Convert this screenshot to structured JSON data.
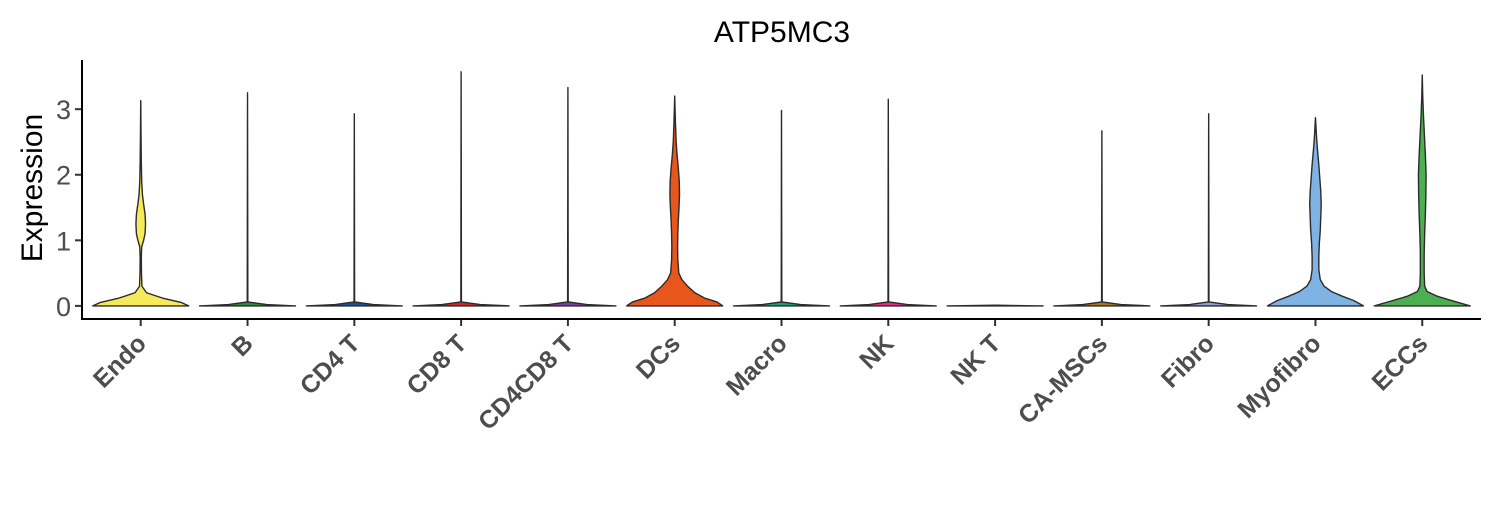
{
  "chart_data": {
    "type": "violin",
    "title": "ATP5MC3",
    "xlabel": "",
    "ylabel": "Expression",
    "ylim": [
      -0.2,
      3.75
    ],
    "yticks": [
      0,
      1,
      2,
      3
    ],
    "grid": false,
    "legend": "none",
    "categories": [
      "Endo",
      "B",
      "CD4 T",
      "CD8 T",
      "CD4CD8 T",
      "DCs",
      "Macro",
      "NK",
      "NK T",
      "CA-MSCs",
      "Fibro",
      "Myofibro",
      "ECCs"
    ],
    "colors": [
      "#F5EB5A",
      "#2E8B3E",
      "#1F4E99",
      "#D8232A",
      "#7A3FA0",
      "#E8561B",
      "#1B9E77",
      "#E7298A",
      "#66A61E",
      "#A6761D",
      "#8DA0CB",
      "#7EB3E3",
      "#4CAF50"
    ],
    "series": [
      {
        "max": 3.13,
        "profile": [
          [
            0,
            1.0
          ],
          [
            0.05,
            0.85
          ],
          [
            0.12,
            0.45
          ],
          [
            0.2,
            0.12
          ],
          [
            0.3,
            0.025
          ],
          [
            0.5,
            0.015
          ],
          [
            0.75,
            0.012
          ],
          [
            0.9,
            0.02
          ],
          [
            1.0,
            0.06
          ],
          [
            1.1,
            0.09
          ],
          [
            1.25,
            0.1
          ],
          [
            1.4,
            0.09
          ],
          [
            1.55,
            0.06
          ],
          [
            1.7,
            0.035
          ],
          [
            1.9,
            0.02
          ],
          [
            2.2,
            0.012
          ],
          [
            2.6,
            0.006
          ],
          [
            3.13,
            0.0
          ]
        ]
      },
      {
        "max": 3.25,
        "profile": [
          [
            0,
            1.0
          ],
          [
            0.02,
            0.4
          ],
          [
            0.06,
            0.006
          ],
          [
            3.25,
            0.0
          ]
        ]
      },
      {
        "max": 2.93,
        "profile": [
          [
            0,
            1.0
          ],
          [
            0.02,
            0.4
          ],
          [
            0.06,
            0.006
          ],
          [
            2.93,
            0.0
          ]
        ]
      },
      {
        "max": 3.57,
        "profile": [
          [
            0,
            1.0
          ],
          [
            0.02,
            0.4
          ],
          [
            0.06,
            0.006
          ],
          [
            3.57,
            0.0
          ]
        ]
      },
      {
        "max": 3.33,
        "profile": [
          [
            0,
            1.0
          ],
          [
            0.02,
            0.4
          ],
          [
            0.06,
            0.006
          ],
          [
            3.33,
            0.0
          ]
        ]
      },
      {
        "max": 3.2,
        "profile": [
          [
            0,
            1.0
          ],
          [
            0.06,
            0.88
          ],
          [
            0.12,
            0.62
          ],
          [
            0.2,
            0.42
          ],
          [
            0.3,
            0.27
          ],
          [
            0.4,
            0.15
          ],
          [
            0.5,
            0.085
          ],
          [
            0.7,
            0.065
          ],
          [
            0.9,
            0.06
          ],
          [
            1.1,
            0.065
          ],
          [
            1.3,
            0.075
          ],
          [
            1.5,
            0.09
          ],
          [
            1.7,
            0.1
          ],
          [
            1.9,
            0.095
          ],
          [
            2.1,
            0.075
          ],
          [
            2.3,
            0.05
          ],
          [
            2.5,
            0.03
          ],
          [
            2.8,
            0.015
          ],
          [
            3.2,
            0.0
          ]
        ]
      },
      {
        "max": 2.98,
        "profile": [
          [
            0,
            1.0
          ],
          [
            0.02,
            0.4
          ],
          [
            0.06,
            0.006
          ],
          [
            2.98,
            0.0
          ]
        ]
      },
      {
        "max": 3.15,
        "profile": [
          [
            0,
            1.0
          ],
          [
            0.02,
            0.4
          ],
          [
            0.06,
            0.006
          ],
          [
            3.15,
            0.0
          ]
        ]
      },
      {
        "max": 0.0,
        "profile": [
          [
            0,
            1.0
          ],
          [
            0.01,
            0.0
          ]
        ]
      },
      {
        "max": 2.67,
        "profile": [
          [
            0,
            1.0
          ],
          [
            0.02,
            0.4
          ],
          [
            0.06,
            0.006
          ],
          [
            2.67,
            0.0
          ]
        ]
      },
      {
        "max": 2.93,
        "profile": [
          [
            0,
            1.0
          ],
          [
            0.02,
            0.4
          ],
          [
            0.06,
            0.006
          ],
          [
            2.93,
            0.0
          ]
        ]
      },
      {
        "max": 2.87,
        "profile": [
          [
            0,
            1.0
          ],
          [
            0.08,
            0.8
          ],
          [
            0.15,
            0.55
          ],
          [
            0.22,
            0.33
          ],
          [
            0.3,
            0.18
          ],
          [
            0.4,
            0.1
          ],
          [
            0.55,
            0.07
          ],
          [
            0.75,
            0.07
          ],
          [
            0.95,
            0.08
          ],
          [
            1.15,
            0.1
          ],
          [
            1.35,
            0.11
          ],
          [
            1.55,
            0.12
          ],
          [
            1.75,
            0.11
          ],
          [
            1.95,
            0.09
          ],
          [
            2.15,
            0.07
          ],
          [
            2.4,
            0.04
          ],
          [
            2.6,
            0.02
          ],
          [
            2.87,
            0.0
          ]
        ]
      },
      {
        "max": 3.52,
        "profile": [
          [
            0,
            1.0
          ],
          [
            0.08,
            0.62
          ],
          [
            0.15,
            0.3
          ],
          [
            0.22,
            0.1
          ],
          [
            0.3,
            0.05
          ],
          [
            0.5,
            0.04
          ],
          [
            0.8,
            0.04
          ],
          [
            1.1,
            0.05
          ],
          [
            1.4,
            0.065
          ],
          [
            1.7,
            0.075
          ],
          [
            2.0,
            0.08
          ],
          [
            2.3,
            0.065
          ],
          [
            2.6,
            0.045
          ],
          [
            2.9,
            0.025
          ],
          [
            3.2,
            0.01
          ],
          [
            3.52,
            0.0
          ]
        ]
      }
    ]
  }
}
